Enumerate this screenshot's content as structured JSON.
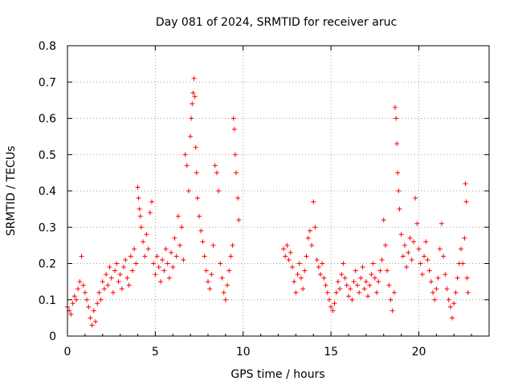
{
  "chart_data": {
    "type": "scatter",
    "title": "Day 081 of 2024, SRMTID for receiver aruc",
    "xlabel": "GPS time / hours",
    "ylabel": "SRMTID / TECUs",
    "xlim": [
      0,
      24
    ],
    "ylim": [
      0,
      0.8
    ],
    "xticks": [
      0,
      5,
      10,
      15,
      20
    ],
    "yticks": [
      0,
      0.1,
      0.2,
      0.3,
      0.4,
      0.5,
      0.6,
      0.7,
      0.8
    ],
    "ytick_labels": [
      "0",
      "0.1",
      "0.2",
      "0.3",
      "0.4",
      "0.5",
      "0.6",
      "0.7",
      "0.8"
    ],
    "grid": true,
    "marker": "+",
    "color": "#ff0000",
    "data_gap_hours": [
      9.8,
      12.2
    ],
    "series": [
      {
        "name": "SRMTID",
        "points": [
          [
            0.0,
            0.08
          ],
          [
            0.1,
            0.07
          ],
          [
            0.2,
            0.06
          ],
          [
            0.3,
            0.09
          ],
          [
            0.4,
            0.11
          ],
          [
            0.5,
            0.1
          ],
          [
            0.6,
            0.13
          ],
          [
            0.7,
            0.15
          ],
          [
            0.8,
            0.22
          ],
          [
            0.9,
            0.14
          ],
          [
            1.0,
            0.12
          ],
          [
            1.1,
            0.1
          ],
          [
            1.2,
            0.08
          ],
          [
            1.3,
            0.05
          ],
          [
            1.4,
            0.03
          ],
          [
            1.5,
            0.07
          ],
          [
            1.6,
            0.04
          ],
          [
            1.7,
            0.09
          ],
          [
            1.8,
            0.12
          ],
          [
            1.9,
            0.1
          ],
          [
            2.0,
            0.15
          ],
          [
            2.1,
            0.13
          ],
          [
            2.2,
            0.17
          ],
          [
            2.3,
            0.14
          ],
          [
            2.4,
            0.19
          ],
          [
            2.5,
            0.16
          ],
          [
            2.6,
            0.12
          ],
          [
            2.7,
            0.18
          ],
          [
            2.8,
            0.2
          ],
          [
            2.9,
            0.15
          ],
          [
            3.0,
            0.17
          ],
          [
            3.1,
            0.13
          ],
          [
            3.2,
            0.19
          ],
          [
            3.3,
            0.21
          ],
          [
            3.4,
            0.16
          ],
          [
            3.5,
            0.14
          ],
          [
            3.6,
            0.22
          ],
          [
            3.7,
            0.18
          ],
          [
            3.8,
            0.24
          ],
          [
            3.9,
            0.2
          ],
          [
            4.0,
            0.41
          ],
          [
            4.05,
            0.38
          ],
          [
            4.1,
            0.35
          ],
          [
            4.15,
            0.33
          ],
          [
            4.2,
            0.3
          ],
          [
            4.3,
            0.26
          ],
          [
            4.4,
            0.22
          ],
          [
            4.5,
            0.28
          ],
          [
            4.6,
            0.24
          ],
          [
            4.7,
            0.34
          ],
          [
            4.8,
            0.37
          ],
          [
            4.9,
            0.2
          ],
          [
            5.0,
            0.17
          ],
          [
            5.1,
            0.22
          ],
          [
            5.2,
            0.19
          ],
          [
            5.3,
            0.15
          ],
          [
            5.4,
            0.21
          ],
          [
            5.5,
            0.18
          ],
          [
            5.6,
            0.24
          ],
          [
            5.7,
            0.2
          ],
          [
            5.8,
            0.16
          ],
          [
            5.9,
            0.23
          ],
          [
            6.0,
            0.19
          ],
          [
            6.1,
            0.27
          ],
          [
            6.2,
            0.22
          ],
          [
            6.3,
            0.33
          ],
          [
            6.4,
            0.25
          ],
          [
            6.5,
            0.3
          ],
          [
            6.6,
            0.21
          ],
          [
            6.7,
            0.5
          ],
          [
            6.8,
            0.47
          ],
          [
            6.9,
            0.4
          ],
          [
            7.0,
            0.55
          ],
          [
            7.05,
            0.6
          ],
          [
            7.1,
            0.64
          ],
          [
            7.15,
            0.67
          ],
          [
            7.2,
            0.71
          ],
          [
            7.25,
            0.66
          ],
          [
            7.3,
            0.52
          ],
          [
            7.35,
            0.45
          ],
          [
            7.4,
            0.38
          ],
          [
            7.5,
            0.33
          ],
          [
            7.6,
            0.29
          ],
          [
            7.7,
            0.26
          ],
          [
            7.8,
            0.22
          ],
          [
            7.9,
            0.18
          ],
          [
            8.0,
            0.15
          ],
          [
            8.1,
            0.13
          ],
          [
            8.2,
            0.17
          ],
          [
            8.3,
            0.25
          ],
          [
            8.4,
            0.47
          ],
          [
            8.5,
            0.45
          ],
          [
            8.6,
            0.4
          ],
          [
            8.7,
            0.2
          ],
          [
            8.8,
            0.16
          ],
          [
            8.9,
            0.12
          ],
          [
            9.0,
            0.1
          ],
          [
            9.1,
            0.14
          ],
          [
            9.2,
            0.18
          ],
          [
            9.3,
            0.22
          ],
          [
            9.4,
            0.25
          ],
          [
            9.45,
            0.6
          ],
          [
            9.5,
            0.57
          ],
          [
            9.55,
            0.5
          ],
          [
            9.6,
            0.45
          ],
          [
            9.7,
            0.38
          ],
          [
            9.75,
            0.32
          ],
          [
            12.3,
            0.24
          ],
          [
            12.4,
            0.22
          ],
          [
            12.5,
            0.25
          ],
          [
            12.6,
            0.21
          ],
          [
            12.7,
            0.23
          ],
          [
            12.8,
            0.19
          ],
          [
            12.9,
            0.15
          ],
          [
            13.0,
            0.12
          ],
          [
            13.1,
            0.17
          ],
          [
            13.2,
            0.2
          ],
          [
            13.3,
            0.16
          ],
          [
            13.4,
            0.13
          ],
          [
            13.5,
            0.18
          ],
          [
            13.6,
            0.22
          ],
          [
            13.7,
            0.27
          ],
          [
            13.8,
            0.29
          ],
          [
            13.9,
            0.25
          ],
          [
            14.0,
            0.37
          ],
          [
            14.1,
            0.3
          ],
          [
            14.2,
            0.21
          ],
          [
            14.3,
            0.19
          ],
          [
            14.4,
            0.17
          ],
          [
            14.5,
            0.2
          ],
          [
            14.6,
            0.16
          ],
          [
            14.7,
            0.14
          ],
          [
            14.8,
            0.12
          ],
          [
            14.9,
            0.1
          ],
          [
            15.0,
            0.08
          ],
          [
            15.1,
            0.07
          ],
          [
            15.2,
            0.09
          ],
          [
            15.3,
            0.12
          ],
          [
            15.4,
            0.15
          ],
          [
            15.5,
            0.13
          ],
          [
            15.6,
            0.17
          ],
          [
            15.7,
            0.2
          ],
          [
            15.8,
            0.16
          ],
          [
            15.9,
            0.14
          ],
          [
            16.0,
            0.11
          ],
          [
            16.1,
            0.13
          ],
          [
            16.2,
            0.1
          ],
          [
            16.3,
            0.15
          ],
          [
            16.4,
            0.18
          ],
          [
            16.5,
            0.14
          ],
          [
            16.6,
            0.12
          ],
          [
            16.7,
            0.16
          ],
          [
            16.8,
            0.19
          ],
          [
            16.9,
            0.13
          ],
          [
            17.0,
            0.15
          ],
          [
            17.1,
            0.11
          ],
          [
            17.2,
            0.14
          ],
          [
            17.3,
            0.17
          ],
          [
            17.4,
            0.2
          ],
          [
            17.5,
            0.16
          ],
          [
            17.6,
            0.12
          ],
          [
            17.7,
            0.15
          ],
          [
            17.8,
            0.18
          ],
          [
            17.9,
            0.21
          ],
          [
            18.0,
            0.32
          ],
          [
            18.1,
            0.25
          ],
          [
            18.2,
            0.18
          ],
          [
            18.3,
            0.14
          ],
          [
            18.4,
            0.1
          ],
          [
            18.5,
            0.07
          ],
          [
            18.6,
            0.12
          ],
          [
            18.65,
            0.63
          ],
          [
            18.7,
            0.6
          ],
          [
            18.75,
            0.53
          ],
          [
            18.8,
            0.45
          ],
          [
            18.85,
            0.4
          ],
          [
            18.9,
            0.35
          ],
          [
            19.0,
            0.28
          ],
          [
            19.1,
            0.22
          ],
          [
            19.2,
            0.25
          ],
          [
            19.3,
            0.19
          ],
          [
            19.4,
            0.23
          ],
          [
            19.5,
            0.27
          ],
          [
            19.6,
            0.21
          ],
          [
            19.7,
            0.26
          ],
          [
            19.8,
            0.38
          ],
          [
            19.9,
            0.31
          ],
          [
            20.0,
            0.24
          ],
          [
            20.1,
            0.2
          ],
          [
            20.2,
            0.17
          ],
          [
            20.3,
            0.22
          ],
          [
            20.4,
            0.26
          ],
          [
            20.5,
            0.21
          ],
          [
            20.6,
            0.18
          ],
          [
            20.7,
            0.15
          ],
          [
            20.8,
            0.12
          ],
          [
            20.9,
            0.1
          ],
          [
            21.0,
            0.13
          ],
          [
            21.1,
            0.16
          ],
          [
            21.2,
            0.24
          ],
          [
            21.3,
            0.31
          ],
          [
            21.4,
            0.22
          ],
          [
            21.5,
            0.17
          ],
          [
            21.6,
            0.13
          ],
          [
            21.7,
            0.1
          ],
          [
            21.8,
            0.08
          ],
          [
            21.9,
            0.05
          ],
          [
            22.0,
            0.09
          ],
          [
            22.1,
            0.12
          ],
          [
            22.2,
            0.16
          ],
          [
            22.3,
            0.2
          ],
          [
            22.4,
            0.24
          ],
          [
            22.5,
            0.2
          ],
          [
            22.6,
            0.27
          ],
          [
            22.65,
            0.42
          ],
          [
            22.7,
            0.37
          ],
          [
            22.75,
            0.16
          ],
          [
            22.8,
            0.12
          ]
        ]
      }
    ]
  }
}
